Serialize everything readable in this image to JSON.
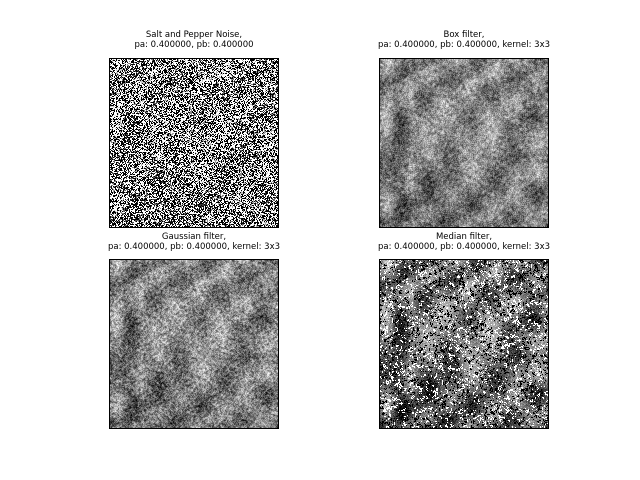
{
  "figure": {
    "background": "#ffffff",
    "panels": [
      {
        "id": "noise",
        "title_line1": "Salt and Pepper Noise,",
        "title_line2": "pa: 0.400000, pb: 0.400000",
        "image": "lena-salt-and-pepper-noise"
      },
      {
        "id": "box",
        "title_line1": "Box filter,",
        "title_line2": "pa: 0.400000, pb: 0.400000, kernel: 3x3",
        "image": "lena-box-filtered"
      },
      {
        "id": "gaussian",
        "title_line1": "Gaussian filter,",
        "title_line2": "pa: 0.400000, pb: 0.400000, kernel: 3x3",
        "image": "lena-gaussian-filtered"
      },
      {
        "id": "median",
        "title_line1": "Median filter,",
        "title_line2": "pa: 0.400000, pb: 0.400000, kernel: 3x3",
        "image": "lena-median-filtered"
      }
    ]
  }
}
